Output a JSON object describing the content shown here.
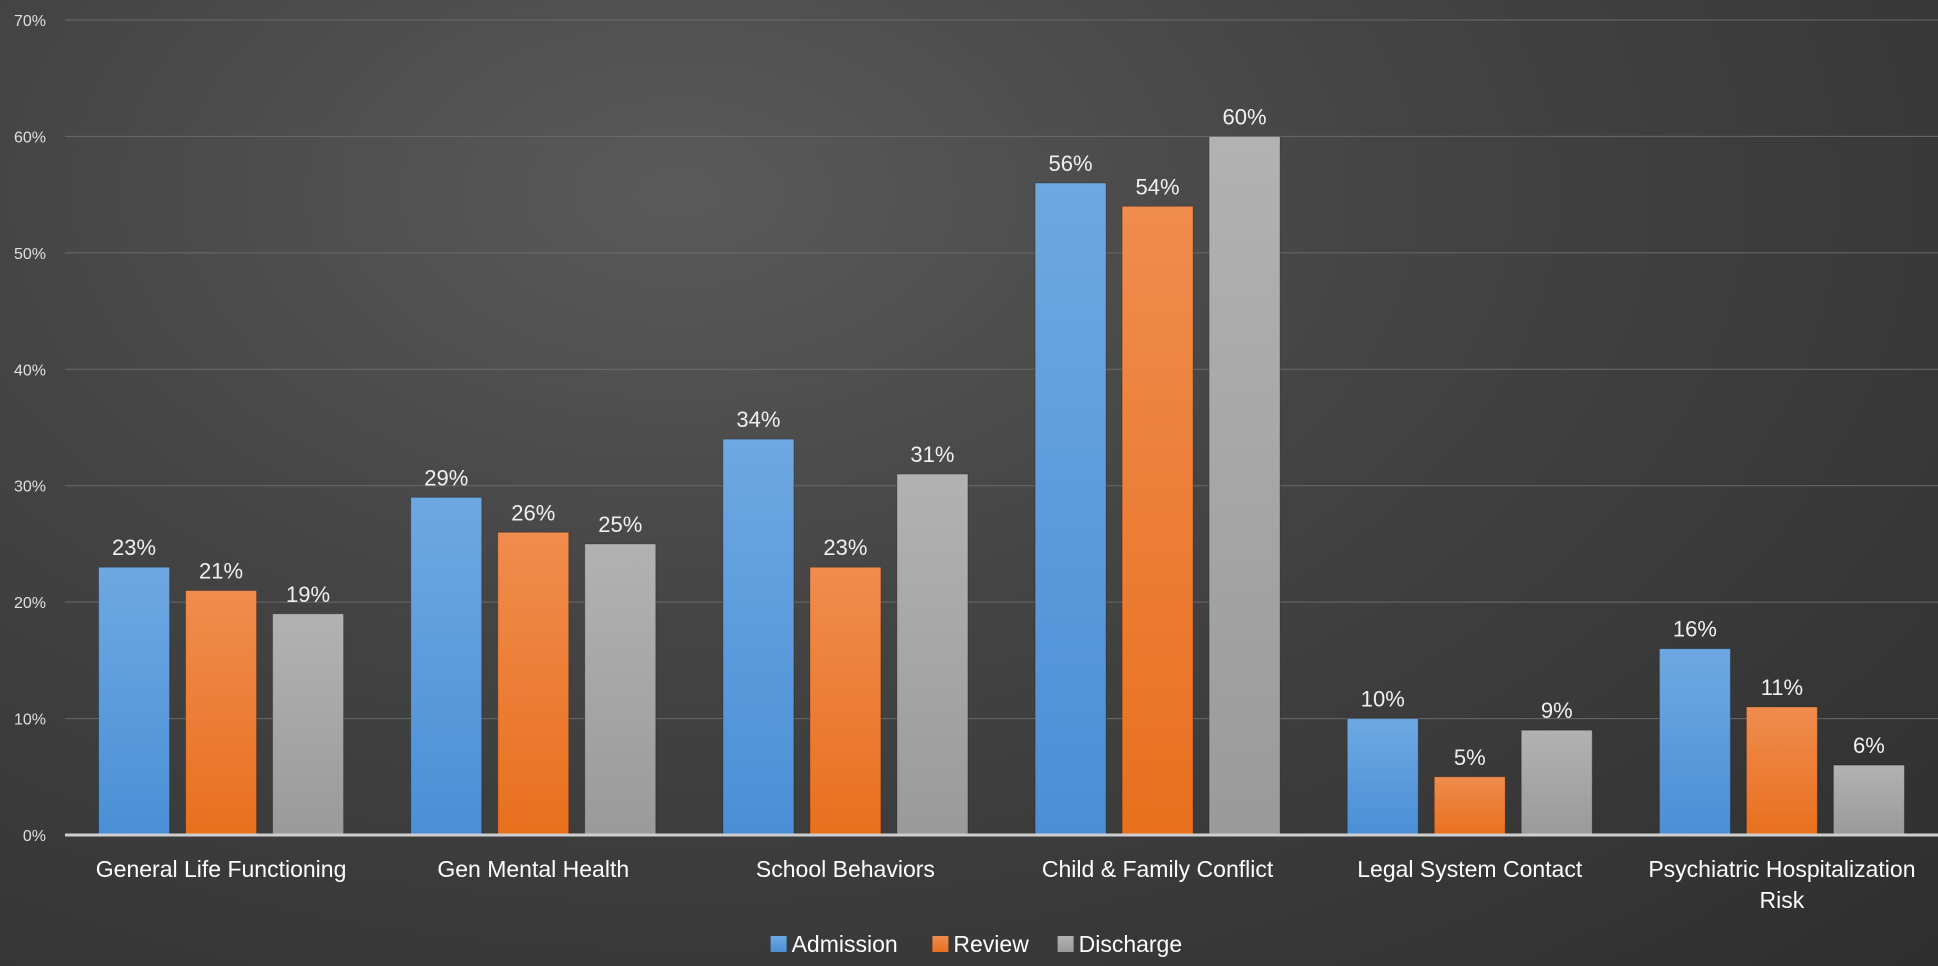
{
  "chart_data": {
    "type": "bar",
    "categories": [
      [
        "General Life Functioning"
      ],
      [
        "Gen Mental Health"
      ],
      [
        "School Behaviors"
      ],
      [
        "Child & Family Conflict"
      ],
      [
        "Legal System Contact"
      ],
      [
        "Psychiatric Hospitalization",
        "Risk"
      ]
    ],
    "series": [
      {
        "name": "Admission",
        "values": [
          23,
          29,
          34,
          56,
          10,
          16
        ],
        "color": "#4a8fd6",
        "color_light": "#6ea8e2"
      },
      {
        "name": "Review",
        "values": [
          21,
          26,
          23,
          54,
          5,
          11
        ],
        "color": "#e8701e",
        "color_light": "#f08c4e"
      },
      {
        "name": "Discharge",
        "values": [
          19,
          25,
          31,
          60,
          9,
          6
        ],
        "color": "#9a9a9a",
        "color_light": "#b2b2b2"
      }
    ],
    "value_suffix": "%",
    "ylim": [
      0,
      70
    ],
    "y_ticks": [
      0,
      10,
      20,
      30,
      40,
      50,
      60,
      70
    ],
    "grid": true,
    "legend_position": "bottom",
    "title": "",
    "xlabel": "",
    "ylabel": ""
  }
}
